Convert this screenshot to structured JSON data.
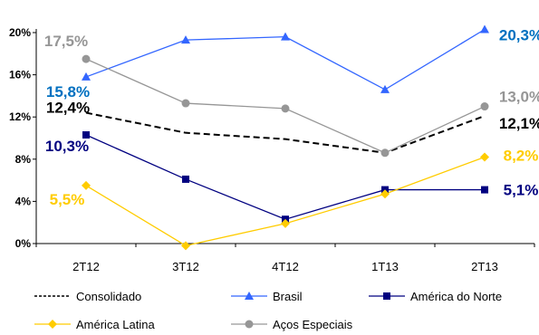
{
  "chart_data": {
    "type": "line",
    "categories": [
      "2T12",
      "3T12",
      "4T12",
      "1T13",
      "2T13"
    ],
    "ylim": [
      0,
      20
    ],
    "yticks": [
      "0%",
      "4%",
      "8%",
      "12%",
      "16%",
      "20%"
    ],
    "title": "",
    "xlabel": "",
    "ylabel": "",
    "grid": false,
    "legend_position": "bottom",
    "series": [
      {
        "name": "Consolidado",
        "color": "#000000",
        "dashed": true,
        "marker": "none",
        "values": [
          12.4,
          10.5,
          9.9,
          8.6,
          12.1
        ]
      },
      {
        "name": "Brasil",
        "color": "#3366ff",
        "dashed": false,
        "marker": "triangle",
        "values": [
          15.8,
          19.3,
          19.6,
          14.6,
          20.3
        ]
      },
      {
        "name": "América do Norte",
        "color": "#000080",
        "dashed": false,
        "marker": "square",
        "values": [
          10.3,
          6.1,
          2.3,
          5.1,
          5.1
        ]
      },
      {
        "name": "América Latina",
        "color": "#ffcc00",
        "dashed": false,
        "marker": "diamond",
        "values": [
          5.5,
          -0.2,
          1.9,
          4.7,
          8.2
        ]
      },
      {
        "name": "Aços Especiais",
        "color": "#969696",
        "dashed": false,
        "marker": "circle",
        "values": [
          17.5,
          13.3,
          12.8,
          8.6,
          13.0
        ]
      }
    ],
    "annotations": [
      {
        "series": "Aços Especiais",
        "point": "2T12",
        "text": "17,5%",
        "color": "#969696"
      },
      {
        "series": "Brasil",
        "point": "2T12",
        "text": "15,8%",
        "color": "#0070c0"
      },
      {
        "series": "Consolidado",
        "point": "2T12",
        "text": "12,4%",
        "color": "#000000"
      },
      {
        "series": "América do Norte",
        "point": "2T12",
        "text": "10,3%",
        "color": "#000080"
      },
      {
        "series": "América Latina",
        "point": "2T12",
        "text": "5,5%",
        "color": "#ffcc00"
      },
      {
        "series": "Brasil",
        "point": "2T13",
        "text": "20,3%",
        "color": "#0070c0"
      },
      {
        "series": "Aços Especiais",
        "point": "2T13",
        "text": "13,0%",
        "color": "#969696"
      },
      {
        "series": "Consolidado",
        "point": "2T13",
        "text": "12,1%",
        "color": "#000000"
      },
      {
        "series": "América Latina",
        "point": "2T13",
        "text": "8,2%",
        "color": "#ffcc00"
      },
      {
        "series": "América do Norte",
        "point": "2T13",
        "text": "5,1%",
        "color": "#000080"
      }
    ]
  }
}
